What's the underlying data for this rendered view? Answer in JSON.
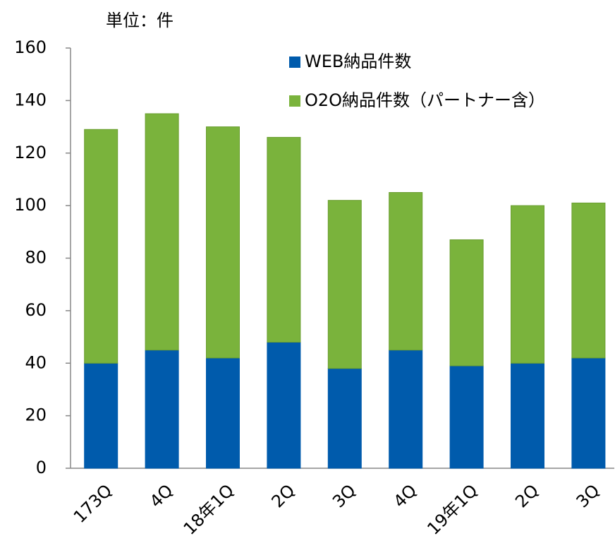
{
  "chart_data": {
    "type": "stacked_bar",
    "unit_label": "単位：件",
    "categories": [
      "173Q",
      "4Q",
      "18年1Q",
      "2Q",
      "3Q",
      "4Q",
      "19年1Q",
      "2Q",
      "3Q"
    ],
    "series": [
      {
        "name": "WEB納品件数",
        "color": "#005bac",
        "values": [
          40,
          45,
          42,
          48,
          38,
          45,
          39,
          40,
          42
        ]
      },
      {
        "name": "O2O納品件数（パートナー含）",
        "color": "#7ab33c",
        "values": [
          89,
          90,
          88,
          78,
          64,
          60,
          48,
          60,
          59
        ]
      }
    ],
    "ylim": [
      0,
      160
    ],
    "yticks": [
      0,
      20,
      40,
      60,
      80,
      100,
      120,
      140,
      160
    ],
    "grid": false
  }
}
